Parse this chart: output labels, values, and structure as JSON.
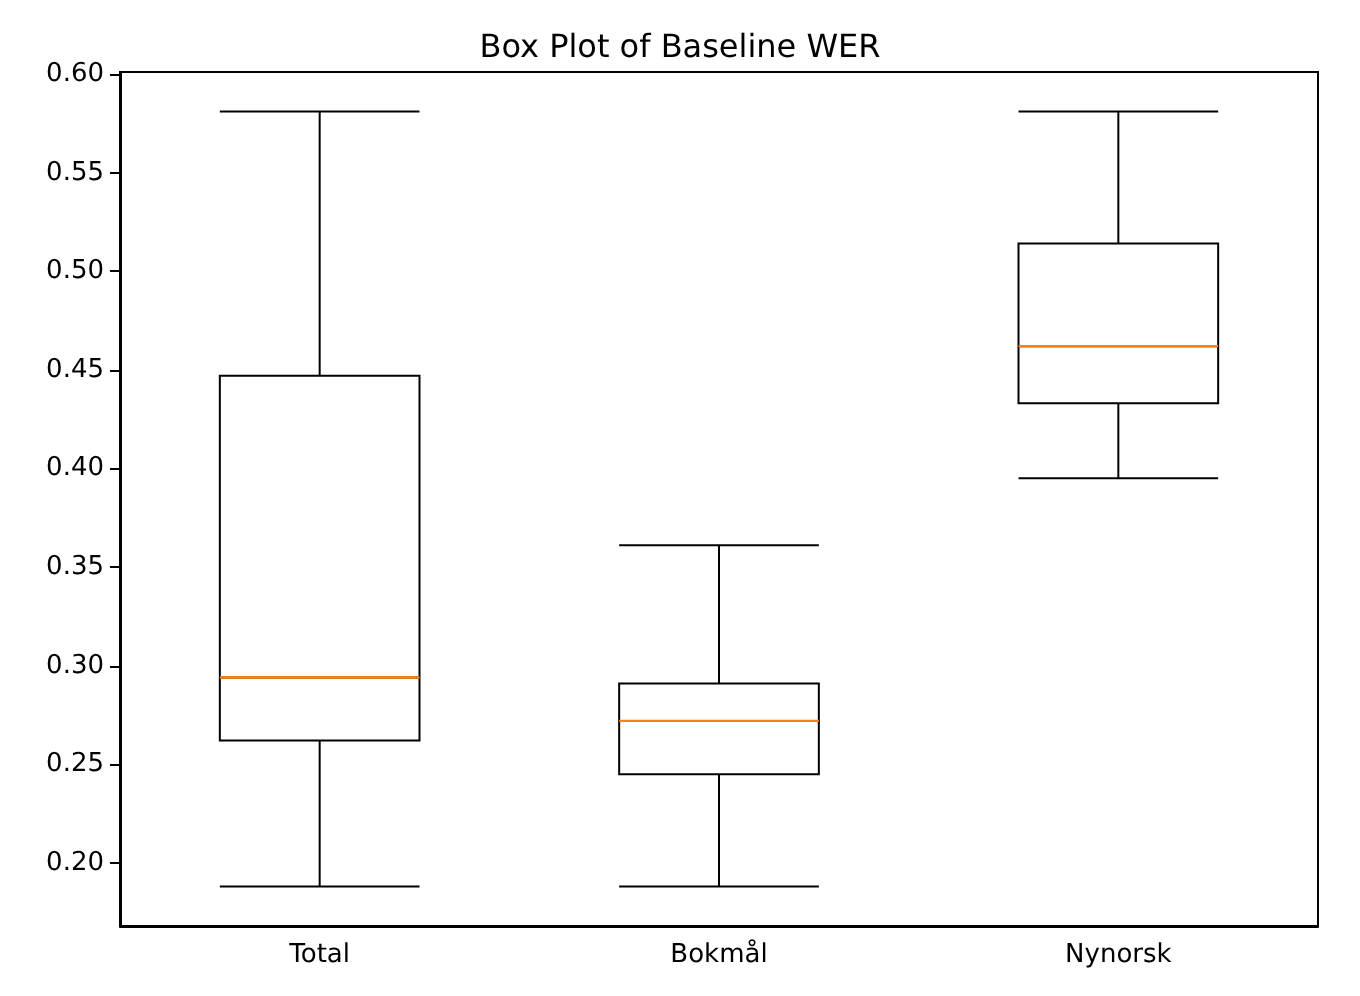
{
  "chart_data": {
    "type": "box",
    "title": "Box Plot of Baseline WER",
    "categories": [
      "Total",
      "Bokmål",
      "Nynorsk"
    ],
    "boxes": [
      {
        "low": 0.188,
        "q1": 0.262,
        "median": 0.294,
        "q3": 0.447,
        "high": 0.581
      },
      {
        "low": 0.188,
        "q1": 0.245,
        "median": 0.272,
        "q3": 0.291,
        "high": 0.361
      },
      {
        "low": 0.395,
        "q1": 0.433,
        "median": 0.462,
        "q3": 0.514,
        "high": 0.581
      }
    ],
    "ylim": [
      0.168,
      0.601
    ],
    "yticks": [
      {
        "value": 0.2,
        "label": "0.20"
      },
      {
        "value": 0.25,
        "label": "0.25"
      },
      {
        "value": 0.3,
        "label": "0.30"
      },
      {
        "value": 0.35,
        "label": "0.35"
      },
      {
        "value": 0.4,
        "label": "0.40"
      },
      {
        "value": 0.45,
        "label": "0.45"
      },
      {
        "value": 0.5,
        "label": "0.50"
      },
      {
        "value": 0.55,
        "label": "0.55"
      },
      {
        "value": 0.6,
        "label": "0.60"
      }
    ],
    "grid": false
  }
}
